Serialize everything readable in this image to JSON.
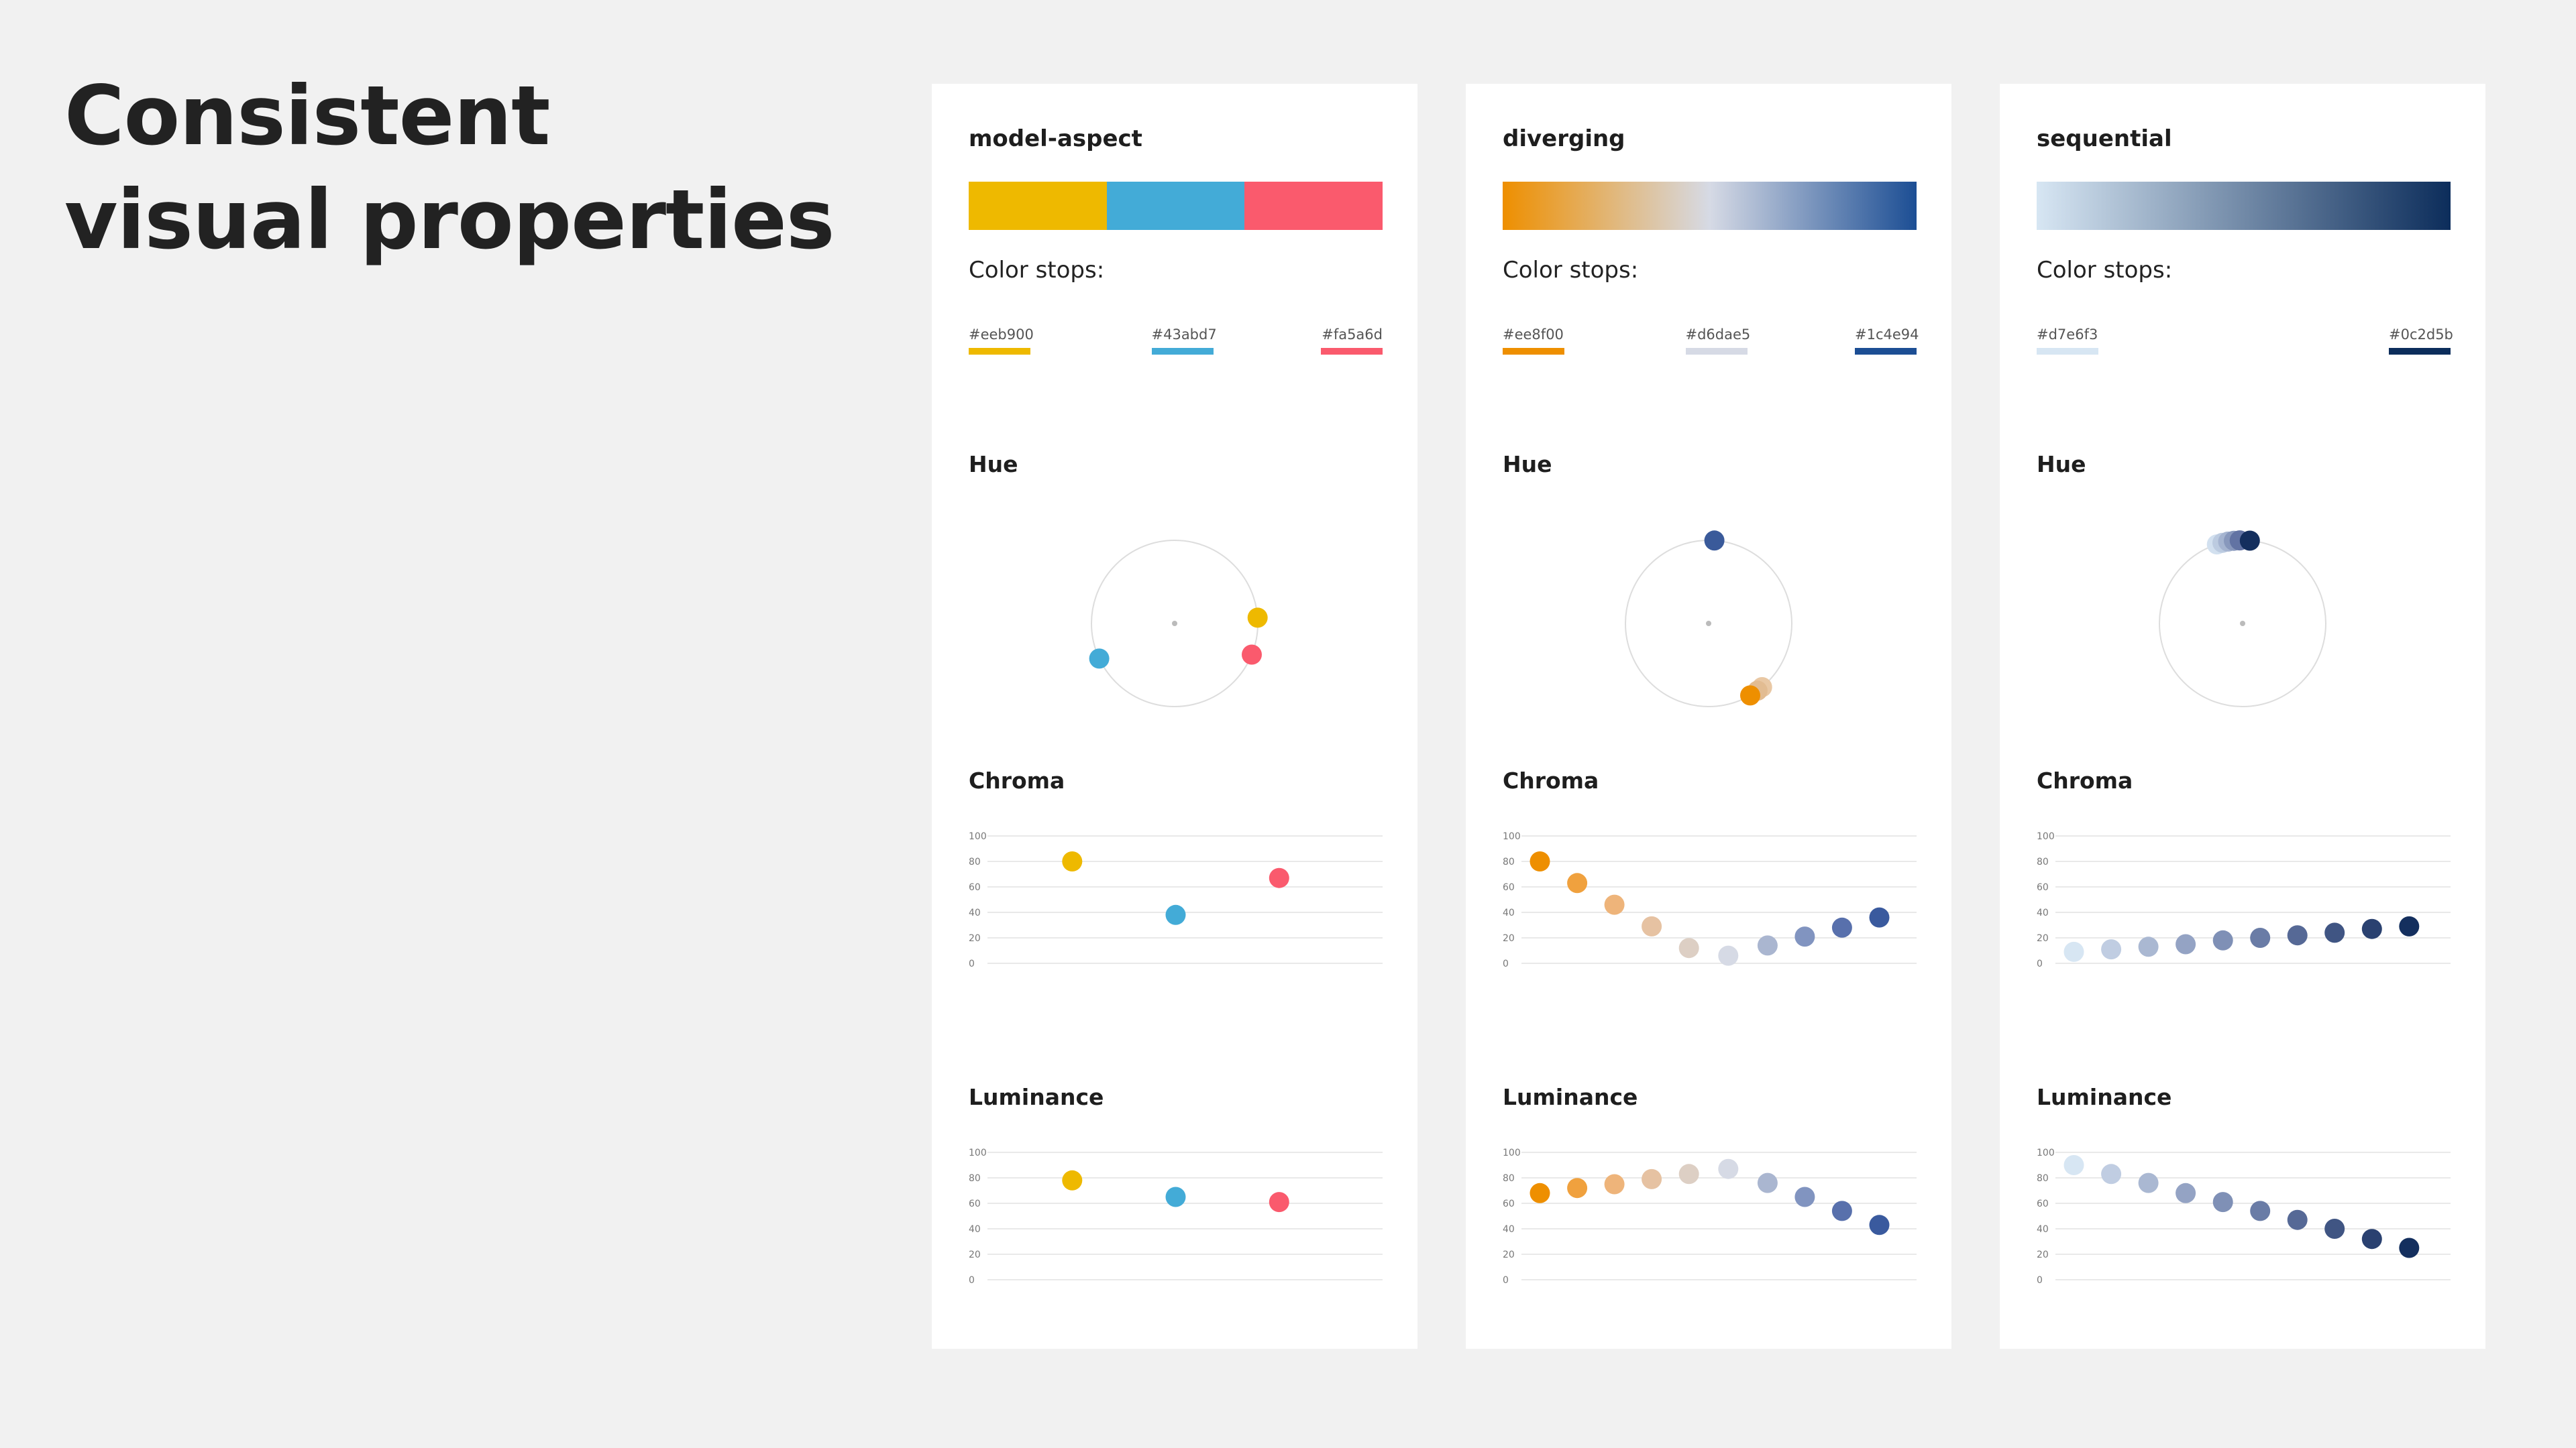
{
  "page": {
    "title_line1": "Consistent",
    "title_line2": "visual properties"
  },
  "labels": {
    "color_stops": "Color stops:",
    "hue": "Hue",
    "chroma": "Chroma",
    "luminance": "Luminance"
  },
  "axis_ticks": [
    "0",
    "20",
    "40",
    "60",
    "80",
    "100"
  ],
  "palettes": [
    {
      "name": "model-aspect",
      "ramp_type": "categorical",
      "ramp_colors": [
        "#eeb900",
        "#43abd7",
        "#fa5a6d"
      ],
      "stops": [
        {
          "hex": "#eeb900",
          "color": "#eeb900",
          "align": "left"
        },
        {
          "hex": "#43abd7",
          "color": "#43abd7",
          "align": "center"
        },
        {
          "hex": "#fa5a6d",
          "color": "#fa5a6d",
          "align": "right"
        }
      ],
      "hue_points": [
        {
          "hue": 86,
          "color": "#eeb900"
        },
        {
          "hue": 245,
          "color": "#43abd7"
        },
        {
          "hue": 112,
          "color": "#fa5a6d"
        }
      ],
      "points": [
        {
          "color": "#eeb900",
          "chroma": 80,
          "luminance": 78,
          "slot": 0.25
        },
        {
          "color": "#43abd7",
          "chroma": 38,
          "luminance": 65,
          "slot": 0.5
        },
        {
          "color": "#fa5a6d",
          "chroma": 67,
          "luminance": 61,
          "slot": 0.75
        }
      ]
    },
    {
      "name": "diverging",
      "ramp_type": "gradient",
      "ramp_colors": [
        "#ee8f00",
        "#d6dae5",
        "#1c4e94"
      ],
      "stops": [
        {
          "hex": "#ee8f00",
          "color": "#ee8f00",
          "align": "left"
        },
        {
          "hex": "#d6dae5",
          "color": "#d6dae5",
          "align": "center"
        },
        {
          "hex": "#1c4e94",
          "color": "#1c4e94",
          "align": "right"
        }
      ],
      "hue_points": [
        {
          "hue": 140,
          "color": "#e9c8a4"
        },
        {
          "hue": 144,
          "color": "#e2bc92"
        },
        {
          "hue": 150,
          "color": "#ee8f00"
        },
        {
          "hue": 4,
          "color": "#3a5a9a"
        }
      ],
      "points": [
        {
          "color": "#ee8f00",
          "chroma": 80,
          "luminance": 68,
          "slot": 0.09
        },
        {
          "color": "#f0a13e",
          "chroma": 63,
          "luminance": 72,
          "slot": 0.18
        },
        {
          "color": "#eeb47a",
          "chroma": 46,
          "luminance": 75,
          "slot": 0.27
        },
        {
          "color": "#e6c2a2",
          "chroma": 29,
          "luminance": 79,
          "slot": 0.36
        },
        {
          "color": "#ddcfc4",
          "chroma": 12,
          "luminance": 83,
          "slot": 0.45
        },
        {
          "color": "#d6dae5",
          "chroma": 6,
          "luminance": 87,
          "slot": 0.545
        },
        {
          "color": "#aab6d0",
          "chroma": 14,
          "luminance": 76,
          "slot": 0.64
        },
        {
          "color": "#8194c0",
          "chroma": 21,
          "luminance": 65,
          "slot": 0.73
        },
        {
          "color": "#5870ac",
          "chroma": 28,
          "luminance": 54,
          "slot": 0.82
        },
        {
          "color": "#3a5a9e",
          "chroma": 36,
          "luminance": 43,
          "slot": 0.91
        }
      ]
    },
    {
      "name": "sequential",
      "ramp_type": "gradient",
      "ramp_colors": [
        "#d7e6f3",
        "#0c2d5b"
      ],
      "stops": [
        {
          "hex": "#d7e6f3",
          "color": "#d7e6f3",
          "align": "left"
        },
        {
          "hex": "#0c2d5b",
          "color": "#0c2d5b",
          "align": "right"
        }
      ],
      "hue_points": [
        {
          "hue": 342,
          "color": "#d2e0ef"
        },
        {
          "hue": 346,
          "color": "#bccbe0"
        },
        {
          "hue": 350,
          "color": "#a5b4d0"
        },
        {
          "hue": 354,
          "color": "#8898bc"
        },
        {
          "hue": 358,
          "color": "#6273a3"
        },
        {
          "hue": 5,
          "color": "#142f5e"
        }
      ],
      "points": [
        {
          "color": "#d7e6f3",
          "chroma": 9,
          "luminance": 90,
          "slot": 0.09
        },
        {
          "color": "#c0cde2",
          "chroma": 11,
          "luminance": 83,
          "slot": 0.18
        },
        {
          "color": "#aab8d2",
          "chroma": 13,
          "luminance": 76,
          "slot": 0.27
        },
        {
          "color": "#94a3c4",
          "chroma": 15,
          "luminance": 68,
          "slot": 0.36
        },
        {
          "color": "#7f90b6",
          "chroma": 18,
          "luminance": 61,
          "slot": 0.45
        },
        {
          "color": "#6a7ca6",
          "chroma": 20,
          "luminance": 54,
          "slot": 0.54
        },
        {
          "color": "#566996",
          "chroma": 22,
          "luminance": 47,
          "slot": 0.63
        },
        {
          "color": "#405583",
          "chroma": 24,
          "luminance": 40,
          "slot": 0.72
        },
        {
          "color": "#2a4170",
          "chroma": 27,
          "luminance": 32,
          "slot": 0.81
        },
        {
          "color": "#142f5e",
          "chroma": 29,
          "luminance": 25,
          "slot": 0.9
        }
      ]
    }
  ]
}
